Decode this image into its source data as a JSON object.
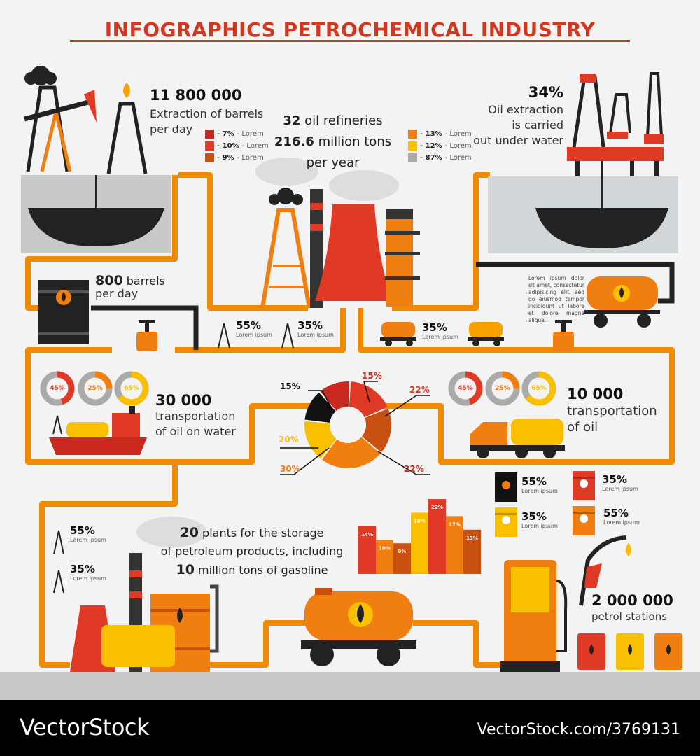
{
  "title": "INFOGRAPHICS PETROCHEMICAL INDUSTRY",
  "extraction": {
    "value": "11 800 000",
    "line1": "Extraction of barrels",
    "line2": "per day"
  },
  "refineries": {
    "count": "32",
    "count_label": "oil refineries",
    "tons": "216.6",
    "tons_label": "million tons",
    "per": "per year"
  },
  "legend_left": [
    {
      "pct": "- 7%",
      "label": " - Lorem",
      "color": "#c8281e"
    },
    {
      "pct": "- 10%",
      "label": " - Lorem",
      "color": "#e03a26"
    },
    {
      "pct": "- 9%",
      "label": " - Lorem",
      "color": "#c85010"
    }
  ],
  "legend_right": [
    {
      "pct": "- 13%",
      "label": " - Lorem",
      "color": "#f07e10"
    },
    {
      "pct": "- 12%",
      "label": " - Lorem",
      "color": "#f8c000"
    },
    {
      "pct": "- 87%",
      "label": " - Lorem",
      "color": "#aaaaaa"
    }
  ],
  "underwater": {
    "value": "34%",
    "line1": "Oil extraction",
    "line2": "is carried",
    "line3": "out under water"
  },
  "barrels": {
    "value": "800",
    "label": "barrels",
    "line2": "per day"
  },
  "rig_stats": [
    {
      "value": "55%",
      "label": "Lorem ipsum"
    },
    {
      "value": "35%",
      "label": "Lorem ipsum"
    }
  ],
  "truck_stat": {
    "value": "35%",
    "label": "Lorem ipsum"
  },
  "paragraph": "Lorem ipsum dolor sit amet, consectetur adipisicing elit, sed do eiusmod tempor incididunt ut labore et dolore magna aliqua.",
  "water_transport": {
    "value": "30 000",
    "line1": "transportation",
    "line2": "of oil on water"
  },
  "land_transport": {
    "value": "10 000",
    "line1": "transportation",
    "line2": "of oil"
  },
  "rings_left": [
    {
      "label": "45%",
      "value": 45,
      "color": "#e03a26"
    },
    {
      "label": "25%",
      "value": 25,
      "color": "#f07e10"
    },
    {
      "label": "65%",
      "value": 65,
      "color": "#f8c000"
    }
  ],
  "rings_right": [
    {
      "label": "45%",
      "value": 45,
      "color": "#e03a26"
    },
    {
      "label": "25%",
      "value": 25,
      "color": "#f07e10"
    },
    {
      "label": "65%",
      "value": 65,
      "color": "#f8c000"
    }
  ],
  "barrel_stats": [
    {
      "value": "55%",
      "label": "Lorem ipsum",
      "color": "#111111"
    },
    {
      "value": "35%",
      "label": "Lorem ipsum",
      "color": "#e03a26"
    },
    {
      "value": "35%",
      "label": "Lorem ipsum",
      "color": "#f8c000"
    },
    {
      "value": "55%",
      "label": "Lorem ipsum",
      "color": "#f07e10"
    }
  ],
  "left_stats": [
    {
      "value": "55%",
      "label": "Lorem ipsum"
    },
    {
      "value": "35%",
      "label": "Lorem ipsum"
    }
  ],
  "storage": {
    "count": "20",
    "line1": "plants for the storage",
    "line2": "of petroleum products, including",
    "count2": "10",
    "line3": "million tons of gasoline"
  },
  "stations": {
    "value": "2 000 000",
    "label": "petrol stations"
  },
  "footer": {
    "brand": "VectorStock",
    "url": "VectorStock.com/3769131"
  },
  "chart_data": [
    {
      "type": "pie",
      "donut": true,
      "slices": [
        {
          "label": "22%",
          "value": 22,
          "color": "#e03a26"
        },
        {
          "label": "22%",
          "value": 22,
          "color": "#c85010"
        },
        {
          "label": "30%",
          "value": 30,
          "color": "#f07e10"
        },
        {
          "label": "20%",
          "value": 20,
          "color": "#f8c000"
        },
        {
          "label": "15%",
          "value": 15,
          "color": "#111111"
        },
        {
          "label": "15%",
          "value": 15,
          "color": "#c8281e"
        }
      ]
    },
    {
      "type": "bar",
      "values": [
        14,
        10,
        9,
        18,
        22,
        17,
        13
      ],
      "labels": [
        "14%",
        "10%",
        "9%",
        "18%",
        "22%",
        "17%",
        "13%"
      ],
      "colors": [
        "#e03a26",
        "#f07e10",
        "#c85010",
        "#f8c000",
        "#e03a26",
        "#f07e10",
        "#c85010"
      ]
    }
  ],
  "colors": {
    "pipe": "#f08a00",
    "title": "#d2371f",
    "ground": "#c8c8c8"
  }
}
